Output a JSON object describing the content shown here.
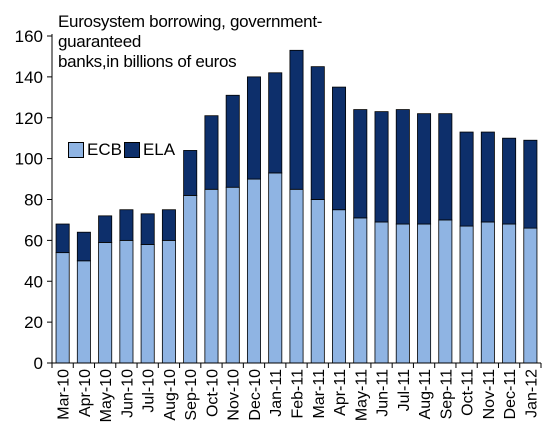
{
  "chart_data": {
    "type": "bar",
    "stacked": true,
    "title": "Eurosystem borrowing, government-guaranteed banks,in billions of euros",
    "title_lines": [
      "Eurosystem borrowing, government-guaranteed",
      "banks,in billions of euros"
    ],
    "xlabel": "",
    "ylabel": "",
    "ylim": [
      0,
      160
    ],
    "yticks": [
      0,
      20,
      40,
      60,
      80,
      100,
      120,
      140,
      160
    ],
    "grid": false,
    "legend_placement": "left-middle",
    "categories": [
      "Mar-10",
      "Apr-10",
      "May-10",
      "Jun-10",
      "Jul-10",
      "Aug-10",
      "Sep-10",
      "Oct-10",
      "Nov-10",
      "Dec-10",
      "Jan-11",
      "Feb-11",
      "Mar-11",
      "Apr-11",
      "May-11",
      "Jun-11",
      "Jul-11",
      "Aug-11",
      "Sep-11",
      "Oct-11",
      "Nov-11",
      "Dec-11",
      "Jan-12"
    ],
    "series": [
      {
        "name": "ECB",
        "color": "#8fb4e3",
        "values": [
          54,
          50,
          59,
          60,
          58,
          60,
          82,
          85,
          86,
          90,
          93,
          85,
          80,
          75,
          71,
          69,
          68,
          68,
          70,
          67,
          69,
          68,
          66
        ]
      },
      {
        "name": "ELA",
        "color": "#0d2f6b",
        "values": [
          14,
          14,
          13,
          15,
          15,
          15,
          22,
          36,
          45,
          50,
          49,
          68,
          65,
          60,
          53,
          54,
          56,
          54,
          52,
          46,
          44,
          42,
          43
        ]
      }
    ]
  }
}
